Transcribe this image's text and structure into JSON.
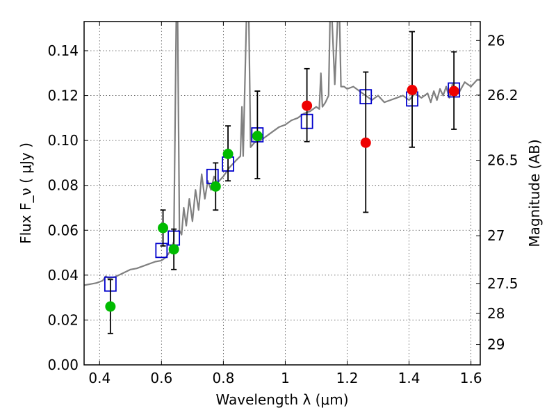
{
  "chart_data": {
    "type": "scatter",
    "x_axis": {
      "label": "Wavelength λ (μm)",
      "range": [
        0.35,
        1.63
      ],
      "ticks": [
        0.4,
        0.6,
        0.8,
        1.0,
        1.2,
        1.4,
        1.6
      ],
      "tick_labels": [
        "0.4",
        "0.6",
        "0.8",
        "1",
        "1.2",
        "1.4",
        "1.6"
      ]
    },
    "y_axis": {
      "label": "Flux F_ν ( μJy )",
      "range": [
        0.0,
        0.153
      ],
      "ticks": [
        0.0,
        0.02,
        0.04,
        0.06,
        0.08,
        0.1,
        0.12,
        0.14
      ],
      "tick_labels": [
        "0.00",
        "0.02",
        "0.04",
        "0.06",
        "0.08",
        "0.10",
        "0.12",
        "0.14"
      ]
    },
    "y2_axis": {
      "label": "Magnitude (AB)",
      "ticks": [
        26,
        26.2,
        26.5,
        27,
        27.5,
        28,
        29
      ],
      "tick_labels": [
        "26",
        "26.2",
        "26.5",
        "27",
        "27.5",
        "28",
        "29"
      ]
    },
    "grid": true,
    "series": [
      {
        "kind": "line",
        "color": "#808080",
        "points": [
          [
            0.35,
            0.0355
          ],
          [
            0.37,
            0.036
          ],
          [
            0.39,
            0.0365
          ],
          [
            0.41,
            0.0375
          ],
          [
            0.42,
            0.0395
          ],
          [
            0.43,
            0.0385
          ],
          [
            0.45,
            0.0392
          ],
          [
            0.47,
            0.0405
          ],
          [
            0.5,
            0.0425
          ],
          [
            0.52,
            0.043
          ],
          [
            0.55,
            0.0445
          ],
          [
            0.58,
            0.046
          ],
          [
            0.6,
            0.0465
          ],
          [
            0.615,
            0.048
          ],
          [
            0.63,
            0.051
          ],
          [
            0.64,
            0.055
          ],
          [
            0.648,
            0.157
          ],
          [
            0.652,
            0.157
          ],
          [
            0.658,
            0.06
          ],
          [
            0.665,
            0.058
          ],
          [
            0.672,
            0.07
          ],
          [
            0.68,
            0.062
          ],
          [
            0.69,
            0.074
          ],
          [
            0.7,
            0.064
          ],
          [
            0.71,
            0.078
          ],
          [
            0.72,
            0.069
          ],
          [
            0.73,
            0.085
          ],
          [
            0.74,
            0.074
          ],
          [
            0.75,
            0.082
          ],
          [
            0.76,
            0.078
          ],
          [
            0.77,
            0.084
          ],
          [
            0.78,
            0.081
          ],
          [
            0.8,
            0.084
          ],
          [
            0.82,
            0.088
          ],
          [
            0.84,
            0.091
          ],
          [
            0.855,
            0.093
          ],
          [
            0.86,
            0.115
          ],
          [
            0.864,
            0.093
          ],
          [
            0.875,
            0.157
          ],
          [
            0.882,
            0.157
          ],
          [
            0.888,
            0.097
          ],
          [
            0.9,
            0.099
          ],
          [
            0.92,
            0.1
          ],
          [
            0.94,
            0.102
          ],
          [
            0.96,
            0.104
          ],
          [
            0.98,
            0.106
          ],
          [
            1.0,
            0.107
          ],
          [
            1.02,
            0.109
          ],
          [
            1.04,
            0.11
          ],
          [
            1.06,
            0.112
          ],
          [
            1.08,
            0.113
          ],
          [
            1.1,
            0.115
          ],
          [
            1.11,
            0.114
          ],
          [
            1.115,
            0.13
          ],
          [
            1.12,
            0.115
          ],
          [
            1.13,
            0.117
          ],
          [
            1.14,
            0.12
          ],
          [
            1.145,
            0.157
          ],
          [
            1.15,
            0.157
          ],
          [
            1.16,
            0.125
          ],
          [
            1.17,
            0.157
          ],
          [
            1.175,
            0.157
          ],
          [
            1.18,
            0.124
          ],
          [
            1.19,
            0.124
          ],
          [
            1.2,
            0.123
          ],
          [
            1.22,
            0.124
          ],
          [
            1.24,
            0.122
          ],
          [
            1.26,
            0.12
          ],
          [
            1.28,
            0.118
          ],
          [
            1.3,
            0.12
          ],
          [
            1.32,
            0.117
          ],
          [
            1.34,
            0.118
          ],
          [
            1.36,
            0.119
          ],
          [
            1.38,
            0.12
          ],
          [
            1.4,
            0.118
          ],
          [
            1.42,
            0.121
          ],
          [
            1.44,
            0.119
          ],
          [
            1.46,
            0.121
          ],
          [
            1.47,
            0.117
          ],
          [
            1.48,
            0.122
          ],
          [
            1.49,
            0.118
          ],
          [
            1.5,
            0.123
          ],
          [
            1.51,
            0.12
          ],
          [
            1.52,
            0.124
          ],
          [
            1.53,
            0.119
          ],
          [
            1.54,
            0.125
          ],
          [
            1.56,
            0.121
          ],
          [
            1.58,
            0.126
          ],
          [
            1.6,
            0.124
          ],
          [
            1.62,
            0.127
          ],
          [
            1.63,
            0.127
          ]
        ]
      },
      {
        "kind": "open-square",
        "color": "#0000cc",
        "points": [
          [
            0.435,
            0.036
          ],
          [
            0.6,
            0.051
          ],
          [
            0.64,
            0.0565
          ],
          [
            0.765,
            0.084
          ],
          [
            0.815,
            0.0895
          ],
          [
            0.91,
            0.1025
          ],
          [
            1.07,
            0.1085
          ],
          [
            1.26,
            0.1195
          ],
          [
            1.41,
            0.1185
          ],
          [
            1.545,
            0.1225
          ]
        ]
      },
      {
        "kind": "filled-circle",
        "color": "#00bb00",
        "points": [
          {
            "x": 0.435,
            "y": 0.026,
            "err_low": 0.014,
            "err_high": 0.038
          },
          {
            "x": 0.605,
            "y": 0.061,
            "err_low": 0.053,
            "err_high": 0.069
          },
          {
            "x": 0.64,
            "y": 0.0515,
            "err_low": 0.0425,
            "err_high": 0.0605
          },
          {
            "x": 0.775,
            "y": 0.0795,
            "err_low": 0.069,
            "err_high": 0.09
          },
          {
            "x": 0.815,
            "y": 0.094,
            "err_low": 0.082,
            "err_high": 0.1065
          },
          {
            "x": 0.91,
            "y": 0.102,
            "err_low": 0.083,
            "err_high": 0.122
          }
        ]
      },
      {
        "kind": "filled-circle",
        "color": "#ee0000",
        "points": [
          {
            "x": 1.07,
            "y": 0.1155,
            "err_low": 0.0995,
            "err_high": 0.132
          },
          {
            "x": 1.26,
            "y": 0.099,
            "err_low": 0.068,
            "err_high": 0.1305
          },
          {
            "x": 1.41,
            "y": 0.1225,
            "err_low": 0.097,
            "err_high": 0.1485
          },
          {
            "x": 1.545,
            "y": 0.122,
            "err_low": 0.105,
            "err_high": 0.1395
          }
        ]
      }
    ]
  }
}
